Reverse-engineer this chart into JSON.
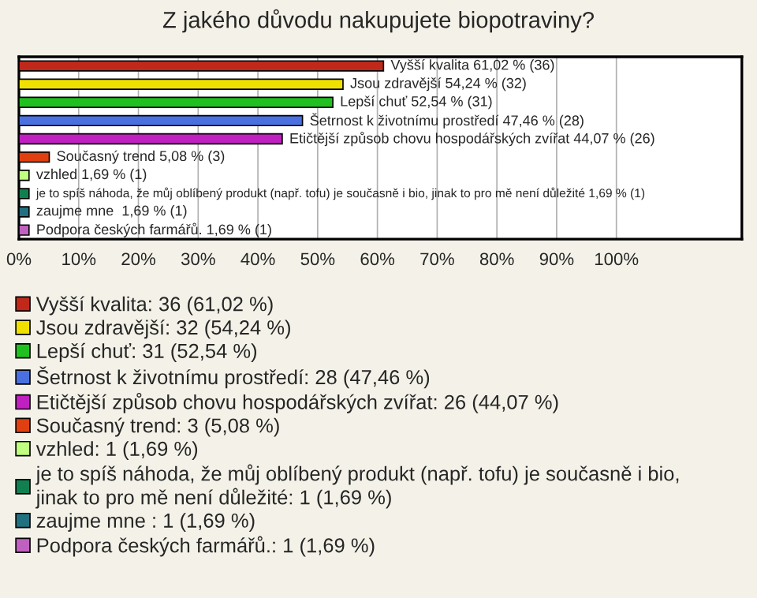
{
  "chart_data": {
    "type": "bar",
    "orientation": "horizontal",
    "title": "Z jakého důvodu nakupujete biopotraviny?",
    "categories": [
      null,
      null,
      null,
      null,
      null,
      null,
      null,
      null,
      null,
      null
    ],
    "series": [
      {
        "name": "Vyšší kvalita: 36 (61,02 %)",
        "color": "#c0281a",
        "values": [
          61.02,
          null,
          null,
          null,
          null,
          null,
          null,
          null,
          null,
          null
        ],
        "value_labels": [
          "Vyšší kvalita 61,02 % (36)",
          null,
          null,
          null,
          null,
          null,
          null,
          null,
          null,
          null
        ]
      },
      {
        "name": "Jsou zdravější: 32 (54,24 %)",
        "color": "#f0e000",
        "values": [
          null,
          54.24,
          null,
          null,
          null,
          null,
          null,
          null,
          null,
          null
        ],
        "value_labels": [
          null,
          "Jsou zdravější 54,24 % (32)",
          null,
          null,
          null,
          null,
          null,
          null,
          null,
          null
        ]
      },
      {
        "name": "Lepší chuť: 31 (52,54 %)",
        "color": "#20c020",
        "values": [
          null,
          null,
          52.54,
          null,
          null,
          null,
          null,
          null,
          null,
          null
        ],
        "value_labels": [
          null,
          null,
          "Lepší chuť 52,54 % (31)",
          null,
          null,
          null,
          null,
          null,
          null,
          null
        ]
      },
      {
        "name": "Šetrnost k životnímu prostředí: 28 (47,46 %)",
        "color": "#4a70e0",
        "values": [
          null,
          null,
          null,
          47.46,
          null,
          null,
          null,
          null,
          null,
          null
        ],
        "value_labels": [
          null,
          null,
          null,
          "Šetrnost k životnímu prostředí 47,46 % (28)",
          null,
          null,
          null,
          null,
          null,
          null
        ]
      },
      {
        "name": "Etičtější způsob chovu hospodářských zvířat: 26 (44,07 %)",
        "color": "#c020c0",
        "values": [
          null,
          null,
          null,
          null,
          44.07,
          null,
          null,
          null,
          null,
          null
        ],
        "value_labels": [
          null,
          null,
          null,
          null,
          "Etičtější způsob chovu hospodářských zvířat 44,07 % (26)",
          null,
          null,
          null,
          null,
          null
        ]
      },
      {
        "name": "Současný trend: 3 (5,08 %)",
        "color": "#e04010",
        "values": [
          null,
          null,
          null,
          null,
          null,
          5.08,
          null,
          null,
          null,
          null
        ],
        "value_labels": [
          null,
          null,
          null,
          null,
          null,
          "Současný trend 5,08 % (3)",
          null,
          null,
          null,
          null
        ]
      },
      {
        "name": "vzhled: 1 (1,69 %)",
        "color": "#c0ff80",
        "values": [
          null,
          null,
          null,
          null,
          null,
          null,
          1.69,
          null,
          null,
          null
        ],
        "value_labels": [
          null,
          null,
          null,
          null,
          null,
          null,
          "vzhled 1,69 % (1)",
          null,
          null,
          null
        ]
      },
      {
        "name": "je to spíš náhoda, že můj oblíbený produkt (např. tofu) je současně i bio,\njinak to pro mě není důležité: 1 (1,69 %)",
        "color": "#108050",
        "values": [
          null,
          null,
          null,
          null,
          null,
          null,
          null,
          1.69,
          null,
          null
        ],
        "value_labels": [
          null,
          null,
          null,
          null,
          null,
          null,
          null,
          "je to spíš náhoda, že můj oblíbený produkt (např. tofu) je současně i bio, jinak to pro mě není důležité 1,69 % (1)",
          null,
          null
        ]
      },
      {
        "name": "zaujme mne : 1 (1,69 %)",
        "color": "#207080",
        "values": [
          null,
          null,
          null,
          null,
          null,
          null,
          null,
          null,
          1.69,
          null
        ],
        "value_labels": [
          null,
          null,
          null,
          null,
          null,
          null,
          null,
          null,
          "zaujme mne  1,69 % (1)",
          null
        ]
      },
      {
        "name": "Podpora českých farmářů.: 1 (1,69 %)",
        "color": "#c060c0",
        "values": [
          null,
          null,
          null,
          null,
          null,
          null,
          null,
          null,
          null,
          1.69
        ],
        "value_labels": [
          null,
          null,
          null,
          null,
          null,
          null,
          null,
          null,
          null,
          "Podpora českých farmářů. 1,69 % (1)"
        ]
      }
    ],
    "xlim": [
      0,
      121
    ],
    "xticks": [
      {
        "value": 0,
        "label": "0%"
      },
      {
        "value": 10,
        "label": "10%"
      },
      {
        "value": 20,
        "label": "20%"
      },
      {
        "value": 30,
        "label": "30%"
      },
      {
        "value": 40,
        "label": "40%"
      },
      {
        "value": 50,
        "label": "50%"
      },
      {
        "value": 60,
        "label": "60%"
      },
      {
        "value": 70,
        "label": "70%"
      },
      {
        "value": 80,
        "label": "80%"
      },
      {
        "value": 90,
        "label": "90%"
      },
      {
        "value": 100,
        "label": "100%"
      }
    ],
    "grid": "x",
    "legend": "bottom",
    "tick_labels": "x"
  }
}
